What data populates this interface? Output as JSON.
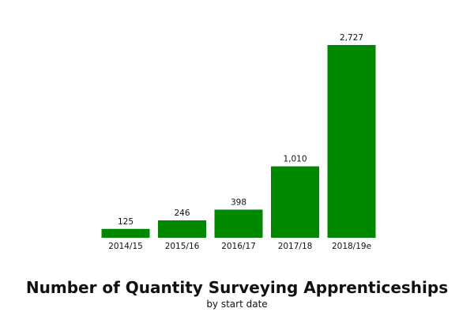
{
  "chart_data": {
    "type": "bar",
    "title": "Number of Quantity Surveying Apprenticeships",
    "subtitle": "by start date",
    "categories": [
      "2014/15",
      "2015/16",
      "2016/17",
      "2017/18",
      "2018/19e"
    ],
    "values": [
      125,
      246,
      398,
      1010,
      2727
    ],
    "value_labels": [
      "125",
      "246",
      "398",
      "1,010",
      "2,727"
    ],
    "xlabel": "",
    "ylabel": "",
    "ylim": [
      0,
      2727
    ],
    "grid": false,
    "legend": "none",
    "bar_color": "#008800"
  }
}
